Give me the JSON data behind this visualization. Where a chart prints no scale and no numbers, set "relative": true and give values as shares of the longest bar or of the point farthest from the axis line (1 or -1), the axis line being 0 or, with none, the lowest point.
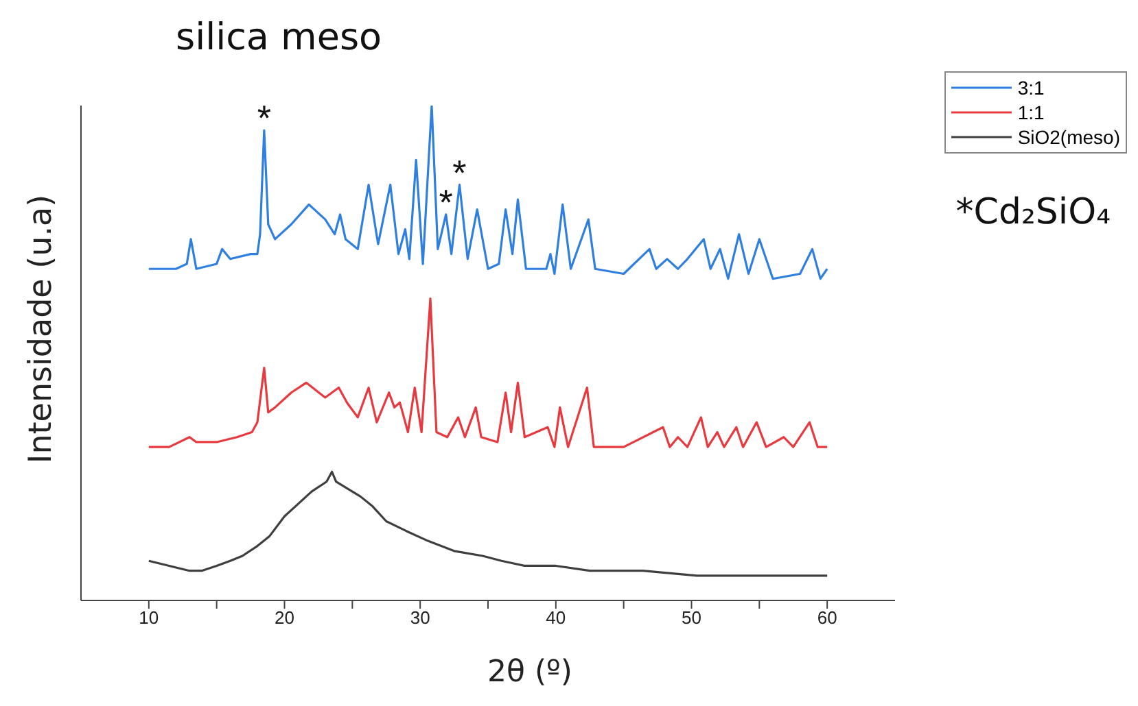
{
  "chart_data": {
    "type": "line",
    "title": "silica meso",
    "xlabel": "2θ (º)",
    "ylabel": "Intensidade (u.a)",
    "relative": true,
    "xlim": [
      5,
      65
    ],
    "xticks": [
      10,
      {
        "value": 15,
        "label": null
      },
      20,
      {
        "value": 25,
        "label": null
      },
      30,
      {
        "value": 35,
        "label": null
      },
      40,
      {
        "value": 45,
        "label": null
      },
      50,
      {
        "value": 55,
        "label": null
      },
      60
    ],
    "tick_labels": "x",
    "legend": "top right",
    "grid": false,
    "series": [
      {
        "name": "3:1",
        "color": "#2f7fe0",
        "x": [
          10,
          12,
          12.8,
          13.1,
          13.5,
          15,
          15.4,
          16,
          17.5,
          18,
          18.2,
          18.5,
          18.8,
          19.3,
          20.5,
          21.8,
          23,
          23.7,
          24.1,
          24.5,
          25.4,
          26.2,
          26.9,
          27.8,
          28.4,
          28.9,
          29.2,
          29.7,
          30.2,
          30.85,
          31.3,
          31.9,
          32.3,
          32.9,
          33.5,
          34.2,
          35,
          35.8,
          36.3,
          36.8,
          37.2,
          37.8,
          39.3,
          39.6,
          39.9,
          40.5,
          41.1,
          42.4,
          42.9,
          45,
          46.9,
          47.4,
          48.2,
          49,
          49.7,
          50.9,
          51.4,
          52.1,
          52.7,
          53.5,
          54.2,
          55,
          56,
          58,
          58.9,
          59.5,
          60
        ],
        "values": [
          0.67,
          0.67,
          0.68,
          0.73,
          0.67,
          0.68,
          0.71,
          0.69,
          0.7,
          0.7,
          0.74,
          0.95,
          0.76,
          0.73,
          0.76,
          0.8,
          0.77,
          0.74,
          0.78,
          0.73,
          0.71,
          0.84,
          0.72,
          0.84,
          0.7,
          0.75,
          0.69,
          0.89,
          0.68,
          1.0,
          0.71,
          0.78,
          0.7,
          0.84,
          0.69,
          0.79,
          0.67,
          0.68,
          0.79,
          0.7,
          0.81,
          0.67,
          0.67,
          0.7,
          0.66,
          0.8,
          0.67,
          0.77,
          0.67,
          0.66,
          0.71,
          0.67,
          0.69,
          0.67,
          0.69,
          0.73,
          0.67,
          0.71,
          0.65,
          0.74,
          0.66,
          0.73,
          0.65,
          0.66,
          0.71,
          0.65,
          0.67
        ]
      },
      {
        "name": "1:1",
        "color": "#e8393f",
        "x": [
          10,
          11.5,
          13,
          13.5,
          15,
          16.5,
          17.6,
          18,
          18.5,
          18.8,
          19.3,
          20.5,
          21.6,
          23,
          24,
          24.6,
          25.4,
          26.2,
          26.8,
          27.7,
          28.1,
          28.5,
          29.1,
          29.6,
          30.1,
          30.75,
          31.2,
          32,
          32.8,
          33.3,
          34.1,
          34.5,
          35.7,
          36.3,
          36.7,
          37.2,
          37.7,
          39.4,
          39.9,
          40.3,
          40.9,
          42.3,
          42.8,
          45,
          47.9,
          48.4,
          49,
          49.7,
          50.7,
          51.2,
          51.9,
          52.4,
          53.3,
          53.8,
          54.8,
          55.5,
          56.8,
          57.5,
          58.7,
          59.3,
          60
        ],
        "values": [
          0.31,
          0.31,
          0.33,
          0.32,
          0.32,
          0.33,
          0.34,
          0.36,
          0.47,
          0.38,
          0.39,
          0.42,
          0.44,
          0.41,
          0.43,
          0.4,
          0.37,
          0.43,
          0.36,
          0.42,
          0.39,
          0.4,
          0.34,
          0.43,
          0.34,
          0.61,
          0.34,
          0.33,
          0.37,
          0.33,
          0.39,
          0.33,
          0.32,
          0.42,
          0.34,
          0.44,
          0.33,
          0.35,
          0.31,
          0.39,
          0.31,
          0.43,
          0.31,
          0.31,
          0.35,
          0.31,
          0.33,
          0.31,
          0.37,
          0.31,
          0.34,
          0.31,
          0.35,
          0.31,
          0.36,
          0.31,
          0.33,
          0.31,
          0.36,
          0.31,
          0.31
        ]
      },
      {
        "name": "SiO2(meso)",
        "color": "#3f3f3f",
        "x": [
          10,
          11.5,
          13,
          13.9,
          15,
          16,
          16.9,
          18,
          18.9,
          20,
          20.8,
          22,
          23.1,
          23.5,
          23.8,
          25,
          25.6,
          26.5,
          27.5,
          29,
          30.6,
          32.5,
          34.6,
          36,
          37.7,
          40,
          42.5,
          46.4,
          50.4,
          54.3,
          57,
          60
        ],
        "values": [
          0.08,
          0.07,
          0.06,
          0.06,
          0.07,
          0.08,
          0.09,
          0.11,
          0.13,
          0.17,
          0.19,
          0.22,
          0.24,
          0.26,
          0.24,
          0.22,
          0.21,
          0.19,
          0.16,
          0.14,
          0.12,
          0.1,
          0.09,
          0.08,
          0.07,
          0.07,
          0.06,
          0.06,
          0.05,
          0.05,
          0.05,
          0.05
        ]
      }
    ],
    "annotations": [
      {
        "text": "*",
        "x": 18.5,
        "y": 0.95
      },
      {
        "text": "*",
        "x": 31.9,
        "y": 0.78
      },
      {
        "text": "*",
        "x": 32.9,
        "y": 0.84
      },
      "*Cd₂SiO₄"
    ]
  }
}
